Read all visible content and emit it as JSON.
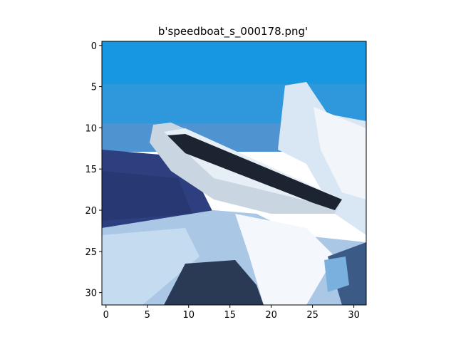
{
  "figure": {
    "title": "b'speedboat_s_000178.png'",
    "image_grid": {
      "columns": 32,
      "rows": 32
    },
    "x_ticks": [
      {
        "value": 0,
        "label": "0"
      },
      {
        "value": 5,
        "label": "5"
      },
      {
        "value": 10,
        "label": "10"
      },
      {
        "value": 15,
        "label": "15"
      },
      {
        "value": 20,
        "label": "20"
      },
      {
        "value": 25,
        "label": "25"
      },
      {
        "value": 30,
        "label": "30"
      }
    ],
    "y_ticks": [
      {
        "value": 0,
        "label": "0"
      },
      {
        "value": 5,
        "label": "5"
      },
      {
        "value": 10,
        "label": "10"
      },
      {
        "value": 15,
        "label": "15"
      },
      {
        "value": 20,
        "label": "20"
      },
      {
        "value": 25,
        "label": "25"
      },
      {
        "value": 30,
        "label": "30"
      }
    ],
    "colors": {
      "sky_top": "#1697e0",
      "sky_low": "#4f93d0",
      "sea_dark": "#2d3f7e",
      "boat_white": "#e6eef6",
      "boat_stripe": "#1b2430",
      "foam": "#f4f7fb",
      "wake_blue": "#7ab0dd"
    }
  }
}
